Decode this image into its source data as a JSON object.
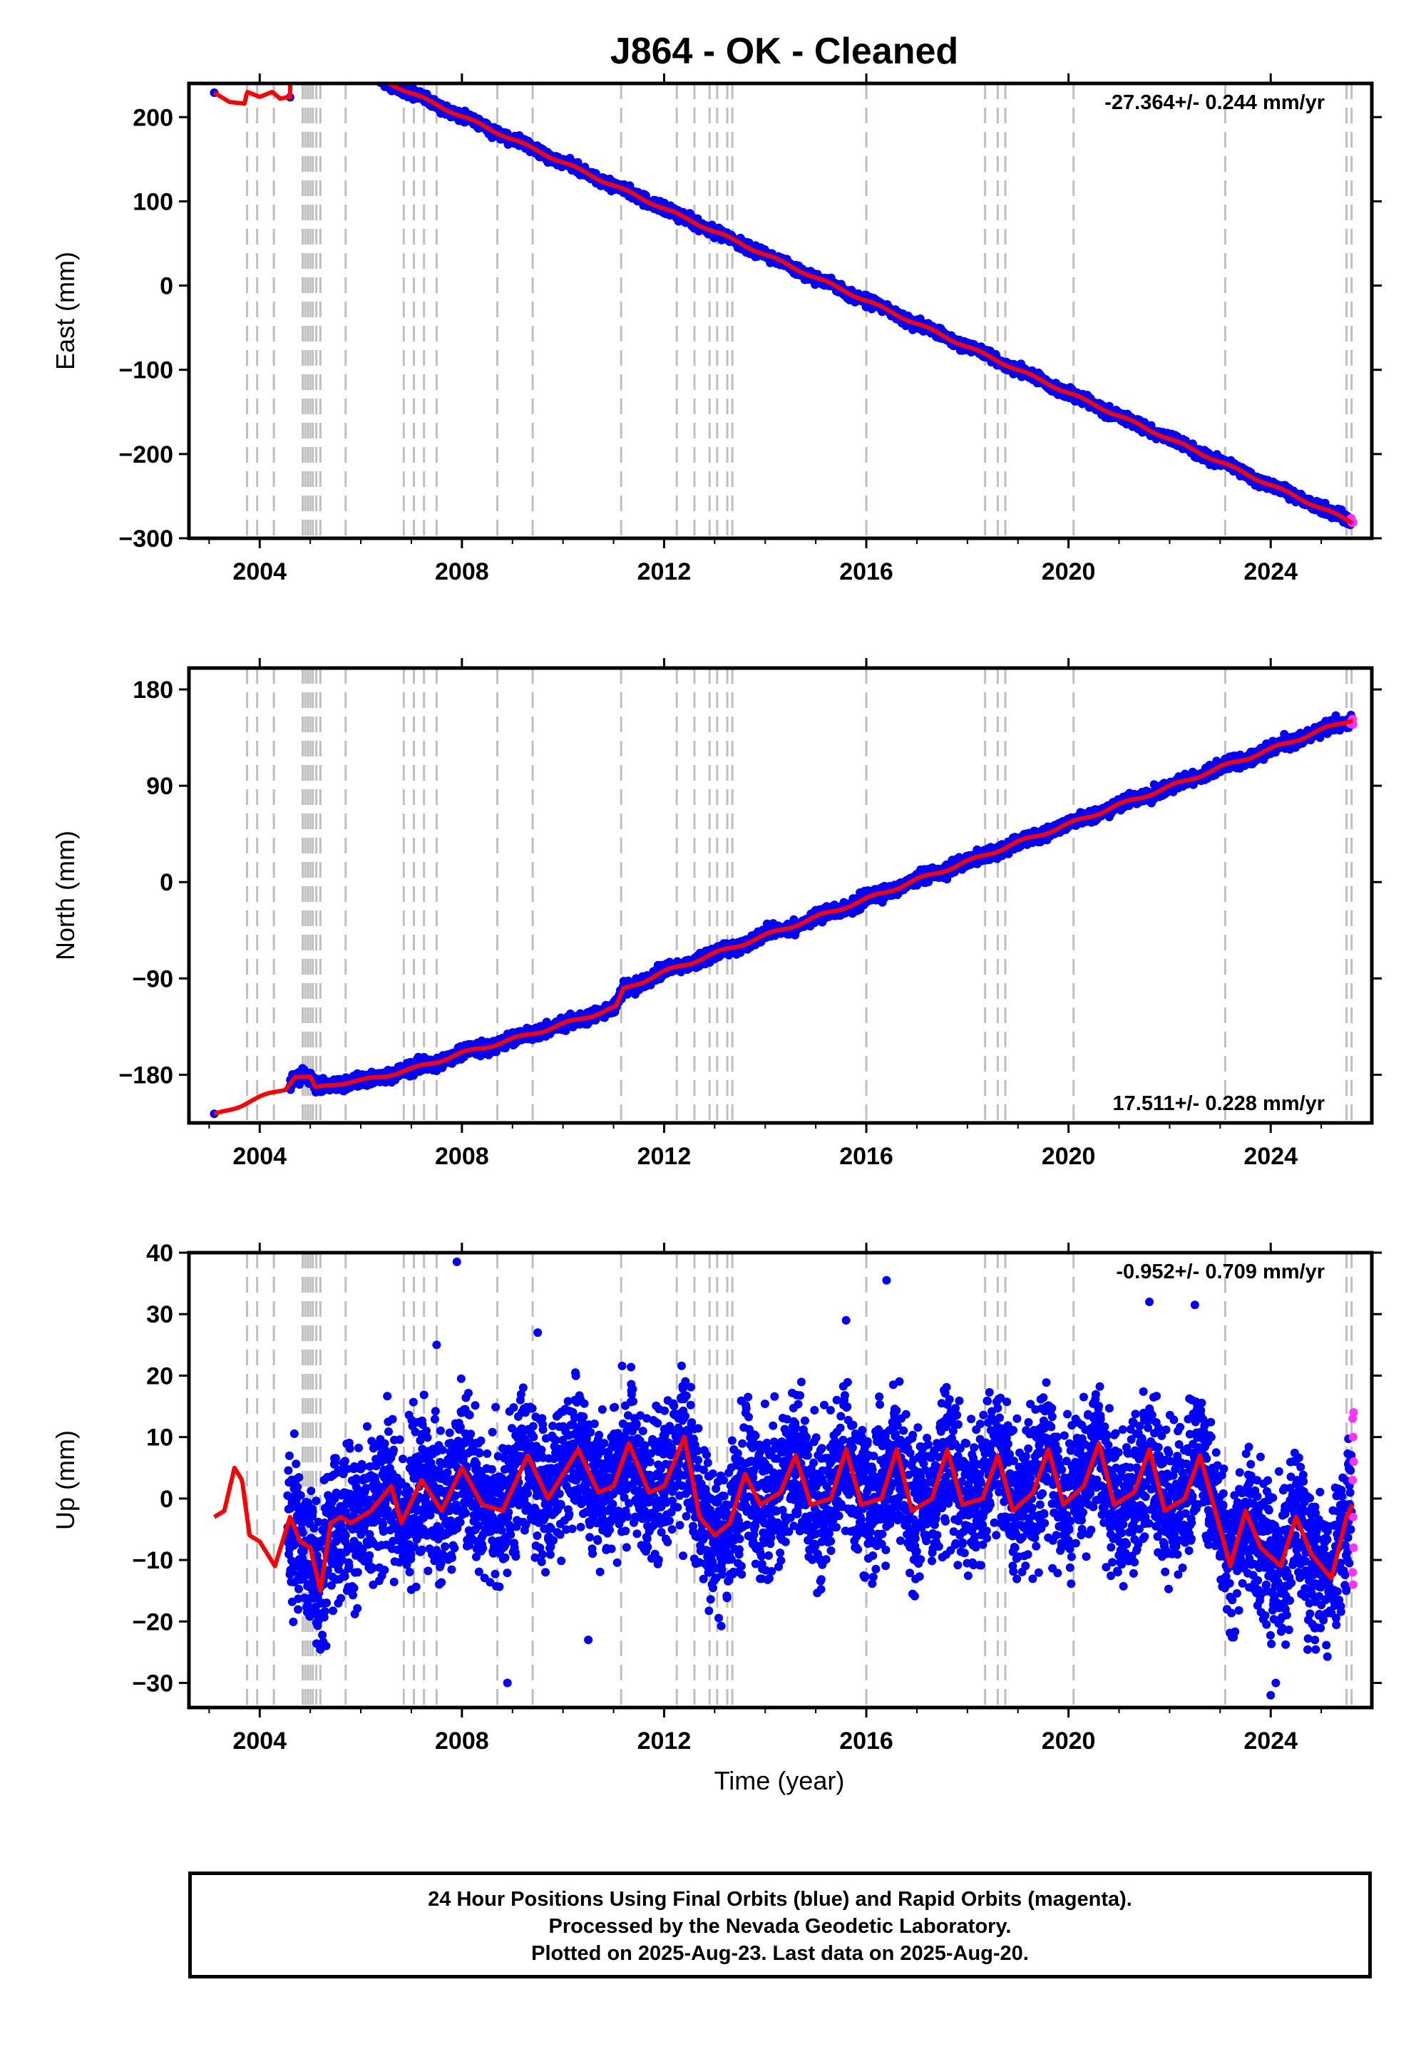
{
  "title": "J864  - OK - Cleaned",
  "colors": {
    "final_points": "#0000ff",
    "rapid_points": "#ff33ff",
    "model_line": "#ff0000",
    "event_lines": "#bfbfbf"
  },
  "event_years": [
    2003.75,
    2003.95,
    2004.28,
    2004.85,
    2004.9,
    2004.95,
    2005.0,
    2005.05,
    2005.12,
    2005.2,
    2005.7,
    2006.85,
    2007.05,
    2007.25,
    2007.5,
    2008.7,
    2009.4,
    2011.15,
    2012.25,
    2012.6,
    2012.9,
    2013.05,
    2013.25,
    2013.35,
    2016.0,
    2018.35,
    2018.6,
    2018.75,
    2020.1,
    2023.1,
    2025.5,
    2025.6
  ],
  "chart_data": [
    {
      "type": "scatter",
      "panel": "east",
      "ylabel": "East (mm)",
      "xlim": [
        2002.6,
        2026.0
      ],
      "ylim": [
        -300,
        240
      ],
      "xticks": [
        "2004",
        "2008",
        "2012",
        "2016",
        "2020",
        "2024"
      ],
      "yticks": [
        "200",
        "100",
        "0",
        "−100",
        "−200",
        "−300"
      ],
      "ytick_values": [
        200,
        100,
        0,
        -100,
        -200,
        -300
      ],
      "rate_label": "-27.364+/- 0.244 mm/yr",
      "rate_position": "top-right",
      "trend": {
        "slope": -27.364,
        "ref_year": 2016.0,
        "ref_value": -18
      },
      "noise": 3,
      "segments": [
        [
          2003.1,
          229
        ],
        [
          2003.4,
          218
        ],
        [
          2003.7,
          216
        ],
        [
          2003.75,
          230
        ],
        [
          2004.0,
          224
        ],
        [
          2004.25,
          230
        ],
        [
          2004.4,
          222
        ],
        [
          2004.6,
          224
        ]
      ]
    },
    {
      "type": "scatter",
      "panel": "north",
      "ylabel": "North (mm)",
      "xlim": [
        2002.6,
        2026.0
      ],
      "ylim": [
        -225,
        200
      ],
      "xticks": [
        "2004",
        "2008",
        "2012",
        "2016",
        "2020",
        "2024"
      ],
      "yticks": [
        "180",
        "90",
        "0",
        "−90",
        "−180"
      ],
      "ytick_values": [
        180,
        90,
        0,
        -90,
        -180
      ],
      "rate_label": "17.511+/- 0.228 mm/yr",
      "rate_position": "bottom-right",
      "noise": 3,
      "segments": [
        [
          2003.1,
          -218
        ],
        [
          2003.8,
          -205
        ],
        [
          2004.5,
          -193
        ],
        [
          2004.7,
          -181
        ],
        [
          2005.0,
          -183
        ],
        [
          2005.1,
          -193
        ],
        [
          2005.5,
          -188
        ],
        [
          2006.0,
          -186
        ],
        [
          2007.0,
          -175
        ],
        [
          2008.0,
          -160
        ],
        [
          2009.0,
          -147
        ],
        [
          2010.0,
          -133
        ],
        [
          2011.05,
          -117
        ],
        [
          2011.2,
          -100
        ],
        [
          2012.0,
          -84
        ],
        [
          2013.0,
          -67
        ],
        [
          2014.0,
          -50
        ],
        [
          2015.0,
          -33
        ],
        [
          2016.0,
          -16
        ],
        [
          2017.0,
          2
        ],
        [
          2018.0,
          19
        ],
        [
          2019.0,
          37
        ],
        [
          2020.0,
          54
        ],
        [
          2021.0,
          72
        ],
        [
          2022.0,
          89
        ],
        [
          2023.0,
          107
        ],
        [
          2024.0,
          124
        ],
        [
          2025.0,
          142
        ],
        [
          2025.6,
          152
        ]
      ]
    },
    {
      "type": "scatter",
      "panel": "up",
      "ylabel": "Up (mm)",
      "xlabel": "Time (year)",
      "xlim": [
        2002.6,
        2026.0
      ],
      "ylim": [
        -34,
        40
      ],
      "xticks": [
        "2004",
        "2008",
        "2012",
        "2016",
        "2020",
        "2024"
      ],
      "yticks": [
        "40",
        "30",
        "20",
        "10",
        "0",
        "−10",
        "−20",
        "−30"
      ],
      "ytick_values": [
        40,
        30,
        20,
        10,
        0,
        -10,
        -20,
        -30
      ],
      "rate_label": "-0.952+/- 0.709 mm/yr",
      "rate_position": "top-right",
      "noise": 6,
      "model_curve": [
        [
          2003.1,
          -3
        ],
        [
          2003.3,
          -2
        ],
        [
          2003.5,
          5
        ],
        [
          2003.65,
          3
        ],
        [
          2003.8,
          -6
        ],
        [
          2004.0,
          -7
        ],
        [
          2004.3,
          -11
        ],
        [
          2004.6,
          -3
        ],
        [
          2004.8,
          -7
        ],
        [
          2005.0,
          -8
        ],
        [
          2005.2,
          -15
        ],
        [
          2005.4,
          -4
        ],
        [
          2005.6,
          -3
        ],
        [
          2005.8,
          -4
        ],
        [
          2006.2,
          -2
        ],
        [
          2006.6,
          2
        ],
        [
          2006.8,
          -4
        ],
        [
          2007.2,
          3
        ],
        [
          2007.6,
          -2
        ],
        [
          2008.0,
          5
        ],
        [
          2008.4,
          -1
        ],
        [
          2008.8,
          -2
        ],
        [
          2009.3,
          7
        ],
        [
          2009.7,
          0
        ],
        [
          2010.3,
          8
        ],
        [
          2010.7,
          1
        ],
        [
          2011.0,
          2
        ],
        [
          2011.3,
          9
        ],
        [
          2011.7,
          1
        ],
        [
          2012.0,
          2
        ],
        [
          2012.4,
          10
        ],
        [
          2012.7,
          -3
        ],
        [
          2013.0,
          -6
        ],
        [
          2013.3,
          -4
        ],
        [
          2013.6,
          4
        ],
        [
          2013.9,
          -1
        ],
        [
          2014.3,
          1
        ],
        [
          2014.6,
          7
        ],
        [
          2014.9,
          -1
        ],
        [
          2015.3,
          0
        ],
        [
          2015.6,
          8
        ],
        [
          2015.9,
          -1
        ],
        [
          2016.3,
          0
        ],
        [
          2016.6,
          8
        ],
        [
          2016.9,
          -2
        ],
        [
          2017.3,
          0
        ],
        [
          2017.6,
          8
        ],
        [
          2017.9,
          -1
        ],
        [
          2018.3,
          0
        ],
        [
          2018.6,
          7
        ],
        [
          2018.9,
          -2
        ],
        [
          2019.3,
          1
        ],
        [
          2019.6,
          8
        ],
        [
          2019.9,
          -1
        ],
        [
          2020.3,
          2
        ],
        [
          2020.6,
          9
        ],
        [
          2020.9,
          -1
        ],
        [
          2021.3,
          1
        ],
        [
          2021.6,
          8
        ],
        [
          2021.9,
          -2
        ],
        [
          2022.3,
          0
        ],
        [
          2022.6,
          7
        ],
        [
          2022.9,
          -2
        ],
        [
          2023.2,
          -11
        ],
        [
          2023.5,
          -2
        ],
        [
          2023.8,
          -8
        ],
        [
          2024.2,
          -11
        ],
        [
          2024.5,
          -3
        ],
        [
          2024.8,
          -9
        ],
        [
          2025.2,
          -13
        ],
        [
          2025.5,
          -3
        ],
        [
          2025.62,
          -1
        ]
      ],
      "outliers": [
        [
          2007.9,
          38.5
        ],
        [
          2016.4,
          35.5
        ],
        [
          2015.6,
          29
        ],
        [
          2021.6,
          32
        ],
        [
          2022.5,
          31.5
        ],
        [
          2009.5,
          27
        ],
        [
          2007.5,
          25
        ],
        [
          2024.0,
          -32
        ],
        [
          2024.1,
          -30
        ],
        [
          2008.9,
          -30
        ],
        [
          2010.5,
          -23
        ]
      ],
      "rapid": [
        [
          2025.62,
          13
        ],
        [
          2025.63,
          10
        ],
        [
          2025.64,
          6
        ],
        [
          2025.62,
          3
        ],
        [
          2025.63,
          -3
        ],
        [
          2025.64,
          -8
        ],
        [
          2025.62,
          -12
        ],
        [
          2025.63,
          -14
        ],
        [
          2025.64,
          14
        ]
      ]
    }
  ],
  "footer": {
    "line1": "24 Hour Positions Using Final Orbits (blue) and Rapid Orbits (magenta).",
    "line2": "Processed by the Nevada Geodetic Laboratory.",
    "line3": "Plotted on 2025-Aug-23. Last data on 2025-Aug-20."
  }
}
